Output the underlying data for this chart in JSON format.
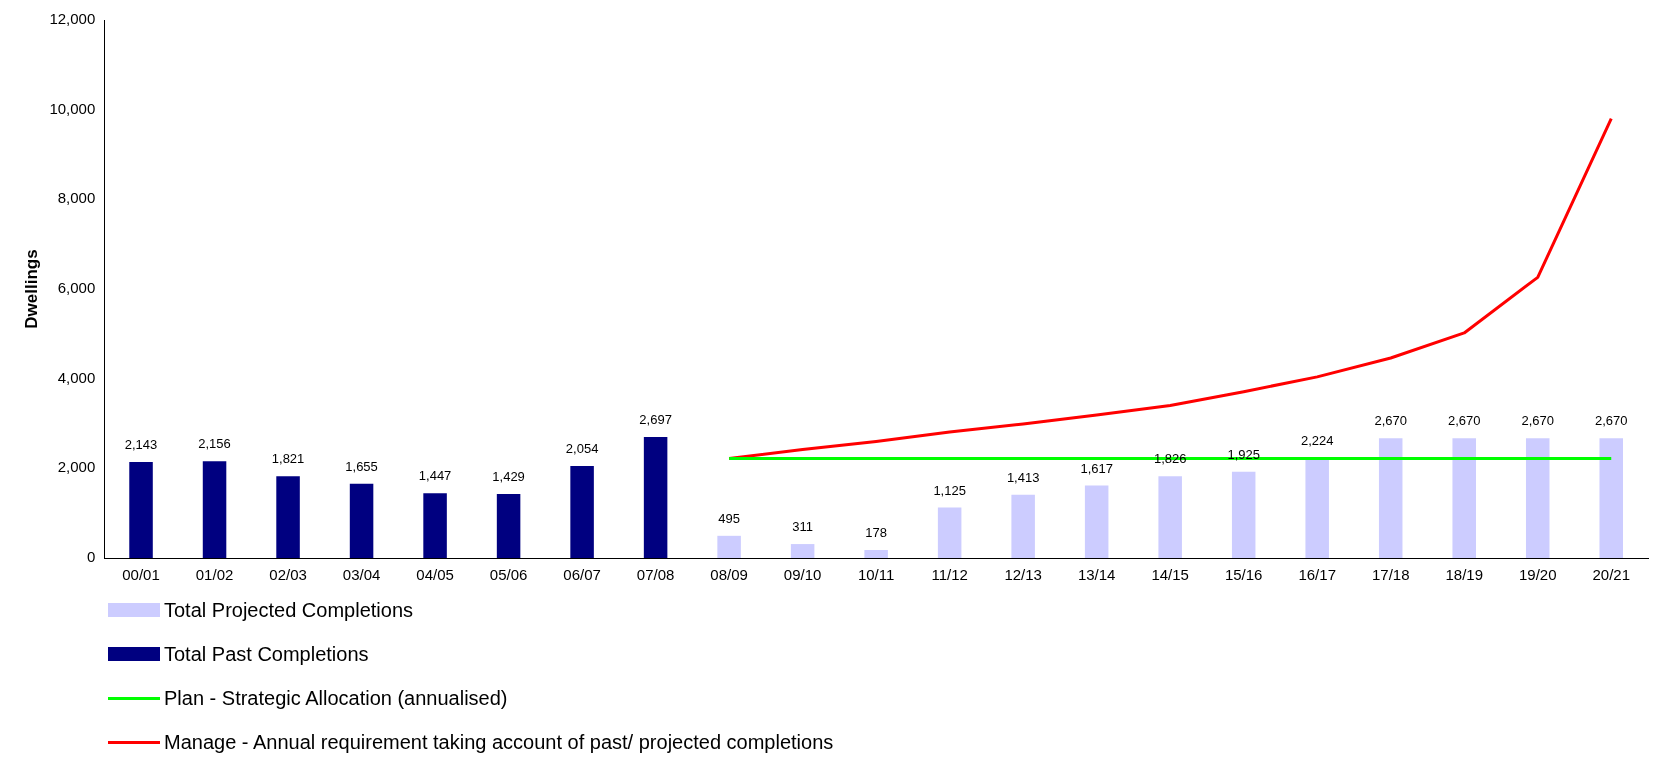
{
  "chart_data": {
    "type": "bar",
    "ylabel": "Dwellings",
    "categories": [
      "00/01",
      "01/02",
      "02/03",
      "03/04",
      "04/05",
      "05/06",
      "06/07",
      "07/08",
      "08/09",
      "09/10",
      "10/11",
      "11/12",
      "12/13",
      "13/14",
      "14/15",
      "15/16",
      "16/17",
      "17/18",
      "18/19",
      "19/20",
      "20/21"
    ],
    "series": [
      {
        "name": "Total Projected Completions",
        "color": "#ccccff",
        "values": [
          null,
          null,
          null,
          null,
          null,
          null,
          null,
          null,
          495,
          311,
          178,
          1125,
          1413,
          1617,
          1826,
          1925,
          2224,
          2670,
          2670,
          2670,
          2670
        ],
        "value_labels": [
          null,
          null,
          null,
          null,
          null,
          null,
          null,
          null,
          "495",
          "311",
          "178",
          "1,125",
          "1,413",
          "1,617",
          "1,826",
          "1,925",
          "2,224",
          "2,670",
          "2,670",
          "2,670",
          "2,670"
        ]
      },
      {
        "name": "Total Past Completions",
        "color": "#000080",
        "values": [
          2143,
          2156,
          1821,
          1655,
          1447,
          1429,
          2054,
          2697,
          null,
          null,
          null,
          null,
          null,
          null,
          null,
          null,
          null,
          null,
          null,
          null,
          null
        ],
        "value_labels": [
          "2,143",
          "2,156",
          "1,821",
          "1,655",
          "1,447",
          "1,429",
          "2,054",
          "2,697",
          null,
          null,
          null,
          null,
          null,
          null,
          null,
          null,
          null,
          null,
          null,
          null,
          null
        ]
      },
      {
        "name": "Plan - Strategic Allocation (annualised)",
        "type": "line",
        "color": "#00ff00",
        "values": [
          null,
          null,
          null,
          null,
          null,
          null,
          null,
          null,
          2220,
          2220,
          2220,
          2220,
          2220,
          2220,
          2220,
          2220,
          2220,
          2220,
          2220,
          2220,
          2220
        ]
      },
      {
        "name": "Manage - Annual requirement taking account of past/ projected completions",
        "type": "line",
        "color": "#ff0000",
        "values": [
          null,
          null,
          null,
          null,
          null,
          null,
          null,
          null,
          2220,
          2420,
          2600,
          2810,
          2990,
          3190,
          3400,
          3710,
          4040,
          4460,
          5020,
          6260,
          9800
        ]
      }
    ],
    "ylim": [
      0,
      12000
    ],
    "yticks": [
      0,
      {
        "value": 2000,
        "label": "2,000"
      },
      {
        "value": 4000,
        "label": "4,000"
      },
      {
        "value": 6000,
        "label": "6,000"
      },
      {
        "value": 8000,
        "label": "8,000"
      },
      {
        "value": 10000,
        "label": "10,000"
      },
      {
        "value": 12000,
        "label": "12,000"
      }
    ],
    "grid": false,
    "legend": "bottom",
    "marker": "none",
    "line_style": "solid"
  }
}
